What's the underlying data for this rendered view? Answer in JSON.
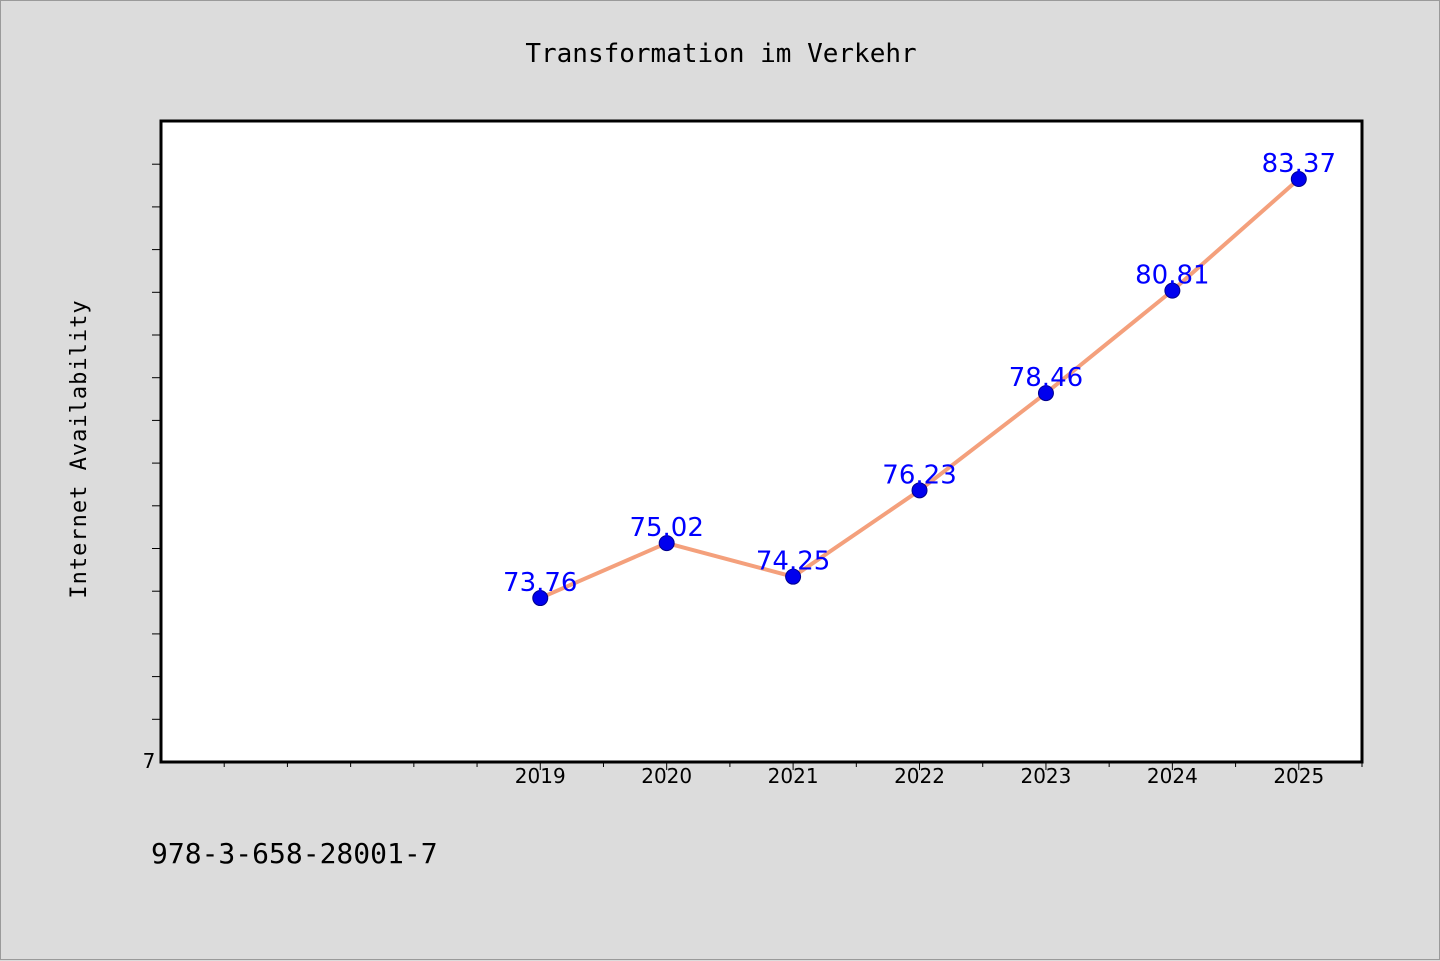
{
  "chart_data": {
    "type": "line",
    "title": "Transformation im Verkehr",
    "xlabel": "",
    "ylabel": "Internet Availability",
    "categories": [
      "2019",
      "2020",
      "2021",
      "2022",
      "2023",
      "2024",
      "2025"
    ],
    "x_range": [
      2016,
      2025.5
    ],
    "y_range": [
      70.0,
      84.7
    ],
    "y_tick_label": "7",
    "series": [
      {
        "values": [
          73.76,
          75.02,
          74.25,
          76.23,
          78.46,
          80.81,
          83.37
        ],
        "labels": [
          "73.76",
          "75.02",
          "74.25",
          "76.23",
          "78.46",
          "80.81",
          "83.37"
        ],
        "line_color": "#f4a07c",
        "marker_color": "#0000ee",
        "label_color": "#0000ff"
      }
    ],
    "grid": false,
    "legend": "none"
  },
  "footer": {
    "isbn": "978-3-658-28001-7"
  }
}
